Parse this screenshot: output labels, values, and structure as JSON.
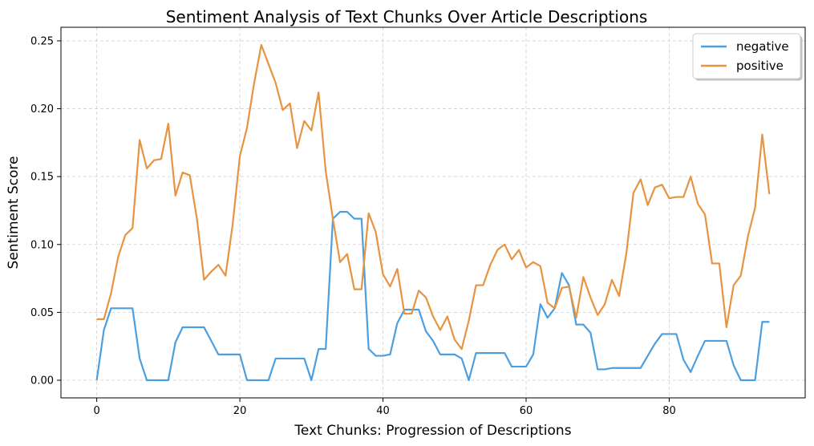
{
  "chart_data": {
    "type": "line",
    "title": "Sentiment Analysis of Text Chunks Over Article Descriptions",
    "xlabel": "Text Chunks: Progression of Descriptions",
    "ylabel": "Sentiment Score",
    "xlim": [
      -5,
      99
    ],
    "ylim": [
      -0.013,
      0.26
    ],
    "xticks": [
      0,
      20,
      40,
      60,
      80
    ],
    "yticks": [
      0.0,
      0.05,
      0.1,
      0.15,
      0.2,
      0.25
    ],
    "ytick_labels": [
      "0.00",
      "0.05",
      "0.10",
      "0.15",
      "0.20",
      "0.25"
    ],
    "grid": true,
    "legend_position": "top-right",
    "series": [
      {
        "name": "negative",
        "color": "#4c9fdf",
        "values": [
          0.0,
          0.037,
          0.053,
          0.053,
          0.053,
          0.053,
          0.016,
          0.0,
          0.0,
          0.0,
          0.0,
          0.028,
          0.039,
          0.039,
          0.039,
          0.039,
          0.029,
          0.019,
          0.019,
          0.019,
          0.019,
          0.0,
          0.0,
          0.0,
          0.0,
          0.016,
          0.016,
          0.016,
          0.016,
          0.016,
          0.0,
          0.023,
          0.023,
          0.119,
          0.124,
          0.124,
          0.119,
          0.119,
          0.023,
          0.018,
          0.018,
          0.019,
          0.042,
          0.052,
          0.052,
          0.052,
          0.036,
          0.029,
          0.019,
          0.019,
          0.019,
          0.016,
          0.0,
          0.02,
          0.02,
          0.02,
          0.02,
          0.02,
          0.01,
          0.01,
          0.01,
          0.019,
          0.056,
          0.046,
          0.053,
          0.079,
          0.07,
          0.041,
          0.041,
          0.035,
          0.008,
          0.008,
          0.009,
          0.009,
          0.009,
          0.009,
          0.009,
          0.018,
          0.027,
          0.034,
          0.034,
          0.034,
          0.015,
          0.006,
          0.018,
          0.029,
          0.029,
          0.029,
          0.029,
          0.011,
          0.0,
          0.0,
          0.0,
          0.043,
          0.043
        ]
      },
      {
        "name": "positive",
        "color": "#e69442",
        "values": [
          0.045,
          0.045,
          0.064,
          0.091,
          0.107,
          0.112,
          0.177,
          0.156,
          0.162,
          0.163,
          0.189,
          0.136,
          0.153,
          0.151,
          0.119,
          0.074,
          0.08,
          0.085,
          0.077,
          0.115,
          0.165,
          0.186,
          0.219,
          0.247,
          0.233,
          0.219,
          0.199,
          0.204,
          0.171,
          0.191,
          0.184,
          0.212,
          0.154,
          0.119,
          0.087,
          0.093,
          0.067,
          0.067,
          0.123,
          0.109,
          0.078,
          0.069,
          0.082,
          0.049,
          0.049,
          0.066,
          0.061,
          0.047,
          0.037,
          0.047,
          0.03,
          0.023,
          0.044,
          0.07,
          0.07,
          0.085,
          0.096,
          0.1,
          0.089,
          0.096,
          0.083,
          0.087,
          0.084,
          0.057,
          0.053,
          0.068,
          0.069,
          0.046,
          0.076,
          0.061,
          0.048,
          0.056,
          0.074,
          0.062,
          0.093,
          0.138,
          0.148,
          0.129,
          0.142,
          0.144,
          0.134,
          0.135,
          0.135,
          0.15,
          0.13,
          0.122,
          0.086,
          0.086,
          0.039,
          0.07,
          0.077,
          0.106,
          0.127,
          0.181,
          0.137
        ]
      }
    ]
  }
}
